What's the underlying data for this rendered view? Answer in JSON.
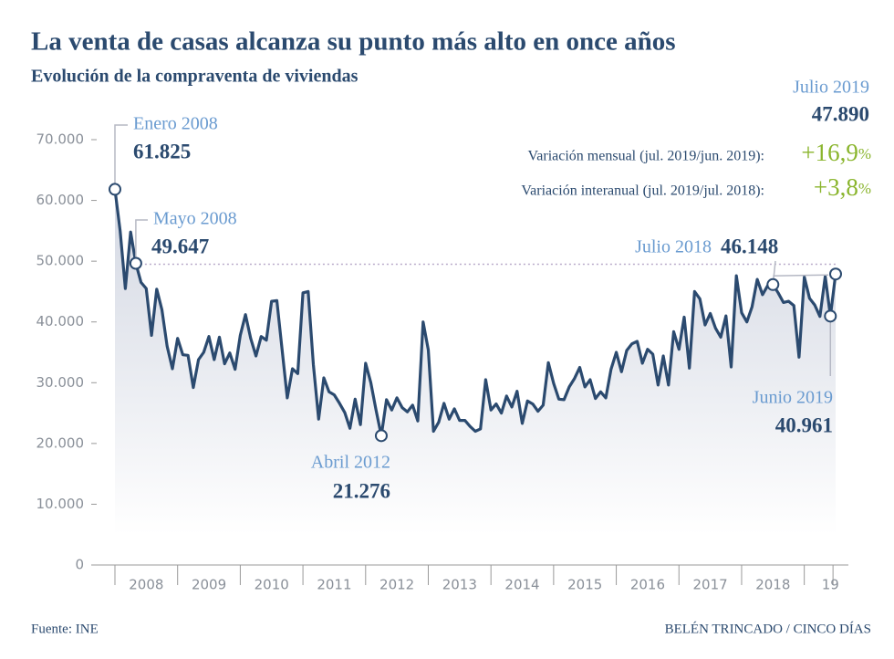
{
  "chart_data": {
    "type": "line",
    "title": "La venta de casas alcanza su punto más alto en once años",
    "subtitle": "Evolución de la compraventa de viviendas",
    "categories": [
      null,
      null,
      null,
      null,
      null,
      null,
      "2008",
      null,
      null,
      null,
      null,
      null,
      null,
      null,
      null,
      null,
      null,
      null,
      "2009",
      null,
      null,
      null,
      null,
      null,
      null,
      null,
      null,
      null,
      null,
      null,
      "2010",
      null,
      null,
      null,
      null,
      null,
      null,
      null,
      null,
      null,
      null,
      null,
      "2011",
      null,
      null,
      null,
      null,
      null,
      null,
      null,
      null,
      null,
      null,
      null,
      "2012",
      null,
      null,
      null,
      null,
      null,
      null,
      null,
      null,
      null,
      null,
      null,
      "2013",
      null,
      null,
      null,
      null,
      null,
      null,
      null,
      null,
      null,
      null,
      null,
      "2014",
      null,
      null,
      null,
      null,
      null,
      null,
      null,
      null,
      null,
      null,
      null,
      "2015",
      null,
      null,
      null,
      null,
      null,
      null,
      null,
      null,
      null,
      null,
      null,
      "2016",
      null,
      null,
      null,
      null,
      null,
      null,
      null,
      null,
      null,
      null,
      null,
      "2017",
      null,
      null,
      null,
      null,
      null,
      null,
      null,
      null,
      null,
      null,
      null,
      "2018",
      null,
      null,
      null,
      null,
      null,
      null,
      null,
      null,
      null,
      null,
      "19",
      null
    ],
    "series": [
      {
        "name": "Compraventa de viviendas",
        "color": "#2b4a6f",
        "values": [
          61825,
          55000,
          45500,
          54800,
          49647,
          46500,
          45500,
          37800,
          45400,
          42000,
          36000,
          32300,
          37300,
          34600,
          34500,
          29200,
          33800,
          35000,
          37600,
          33800,
          37500,
          33100,
          34900,
          32200,
          37800,
          41200,
          37300,
          34400,
          37600,
          37000,
          43400,
          43500,
          35500,
          27500,
          32300,
          31500,
          44800,
          45000,
          33000,
          24000,
          30800,
          28500,
          28000,
          26600,
          25100,
          22500,
          27300,
          23100,
          33200,
          30000,
          25500,
          21276,
          27200,
          25500,
          27500,
          25900,
          25200,
          26300,
          23700,
          40000,
          35400,
          22000,
          23500,
          26600,
          24000,
          25700,
          23800,
          23800,
          22800,
          22000,
          22400,
          30500,
          25500,
          26500,
          25000,
          27800,
          26000,
          28600,
          23300,
          27000,
          26500,
          25300,
          26300,
          33300,
          29900,
          27300,
          27200,
          29300,
          30700,
          32500,
          29300,
          30500,
          27400,
          28500,
          27500,
          32200,
          35000,
          31800,
          35300,
          36400,
          36800,
          33200,
          35500,
          34700,
          29600,
          34400,
          29600,
          38400,
          35500,
          40800,
          32400,
          45000,
          43800,
          39500,
          41400,
          39000,
          37500,
          41000,
          32600,
          47600,
          41500,
          40000,
          42500,
          47000,
          44500,
          46000,
          46148,
          44800,
          43200,
          43400,
          42700,
          34200,
          47400,
          43900,
          42800,
          40900,
          47500,
          40961,
          47890
        ]
      }
    ],
    "ylim": [
      0,
      70000
    ],
    "yticks": [
      0,
      {
        "value": 10000,
        "label": "10.000"
      },
      {
        "value": 20000,
        "label": "20.000"
      },
      {
        "value": 30000,
        "label": "30.000"
      },
      {
        "value": 40000,
        "label": "40.000"
      },
      {
        "value": 50000,
        "label": "50.000"
      },
      {
        "value": 60000,
        "label": "60.000"
      },
      {
        "value": 70000,
        "label": "70.000"
      }
    ],
    "grid": false,
    "annotations": [
      {
        "text": "Enero 2008",
        "value": 61825,
        "value_label": "61.825"
      },
      {
        "text": "Mayo 2008",
        "value": 49647,
        "value_label": "49.647"
      },
      {
        "text": "Abril 2012",
        "value": 21276,
        "value_label": "21.276"
      },
      {
        "text": "Julio 2018",
        "value": 46148,
        "value_label": "46.148"
      },
      {
        "text": "Junio 2019",
        "value": 40961,
        "value_label": "40.961"
      },
      {
        "text": "Julio 2019",
        "value": 47890,
        "value_label": "47.890"
      }
    ],
    "variations": [
      {
        "label": "Variación mensual (jul. 2019/jun. 2019):",
        "value": "+16,9",
        "unit": "%"
      },
      {
        "label": "Variación interanual (jul. 2019/jul. 2018):",
        "value": "+3,8",
        "unit": "%"
      }
    ],
    "source": "Fuente: INE",
    "credit": "BELÉN TRINCADO / CINCO DÍAS"
  }
}
